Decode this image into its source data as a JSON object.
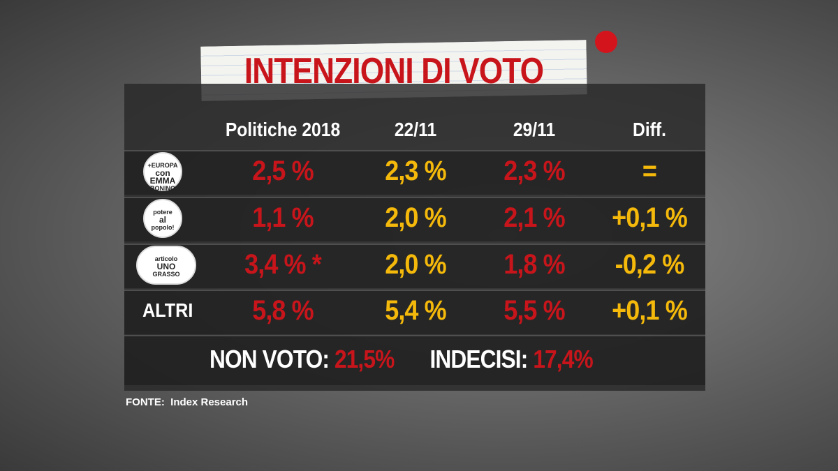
{
  "title": "INTENZIONI DI VOTO",
  "table": {
    "header": [
      "Politiche 2018",
      "22/11",
      "29/11",
      "Diff."
    ],
    "rows": [
      {
        "logo": [
          "+EUROPA",
          "con EMMA",
          "BONINO"
        ],
        "cells": [
          "2,5 %",
          "2,3 %",
          "2,3 %",
          "="
        ]
      },
      {
        "logo": [
          "potere",
          "al",
          "popolo!"
        ],
        "cells": [
          "1,1 %",
          "2,0 %",
          "2,1 %",
          "+0,1 %"
        ]
      },
      {
        "logo": [
          "articolo",
          "UNO",
          "GRASSO"
        ],
        "cells": [
          "3,4 % *",
          "2,0 %",
          "1,8 %",
          "-0,2 %"
        ]
      },
      {
        "label": "ALTRI",
        "cells": [
          "5,8 %",
          "5,4 %",
          "5,5 %",
          "+0,1 %"
        ]
      }
    ]
  },
  "footer": {
    "non_voto_label": "NON VOTO:",
    "non_voto": "21,5%",
    "indecisi_label": "INDECISI:",
    "indecisi": "17,4%"
  },
  "source": "FONTE:  Index Research"
}
